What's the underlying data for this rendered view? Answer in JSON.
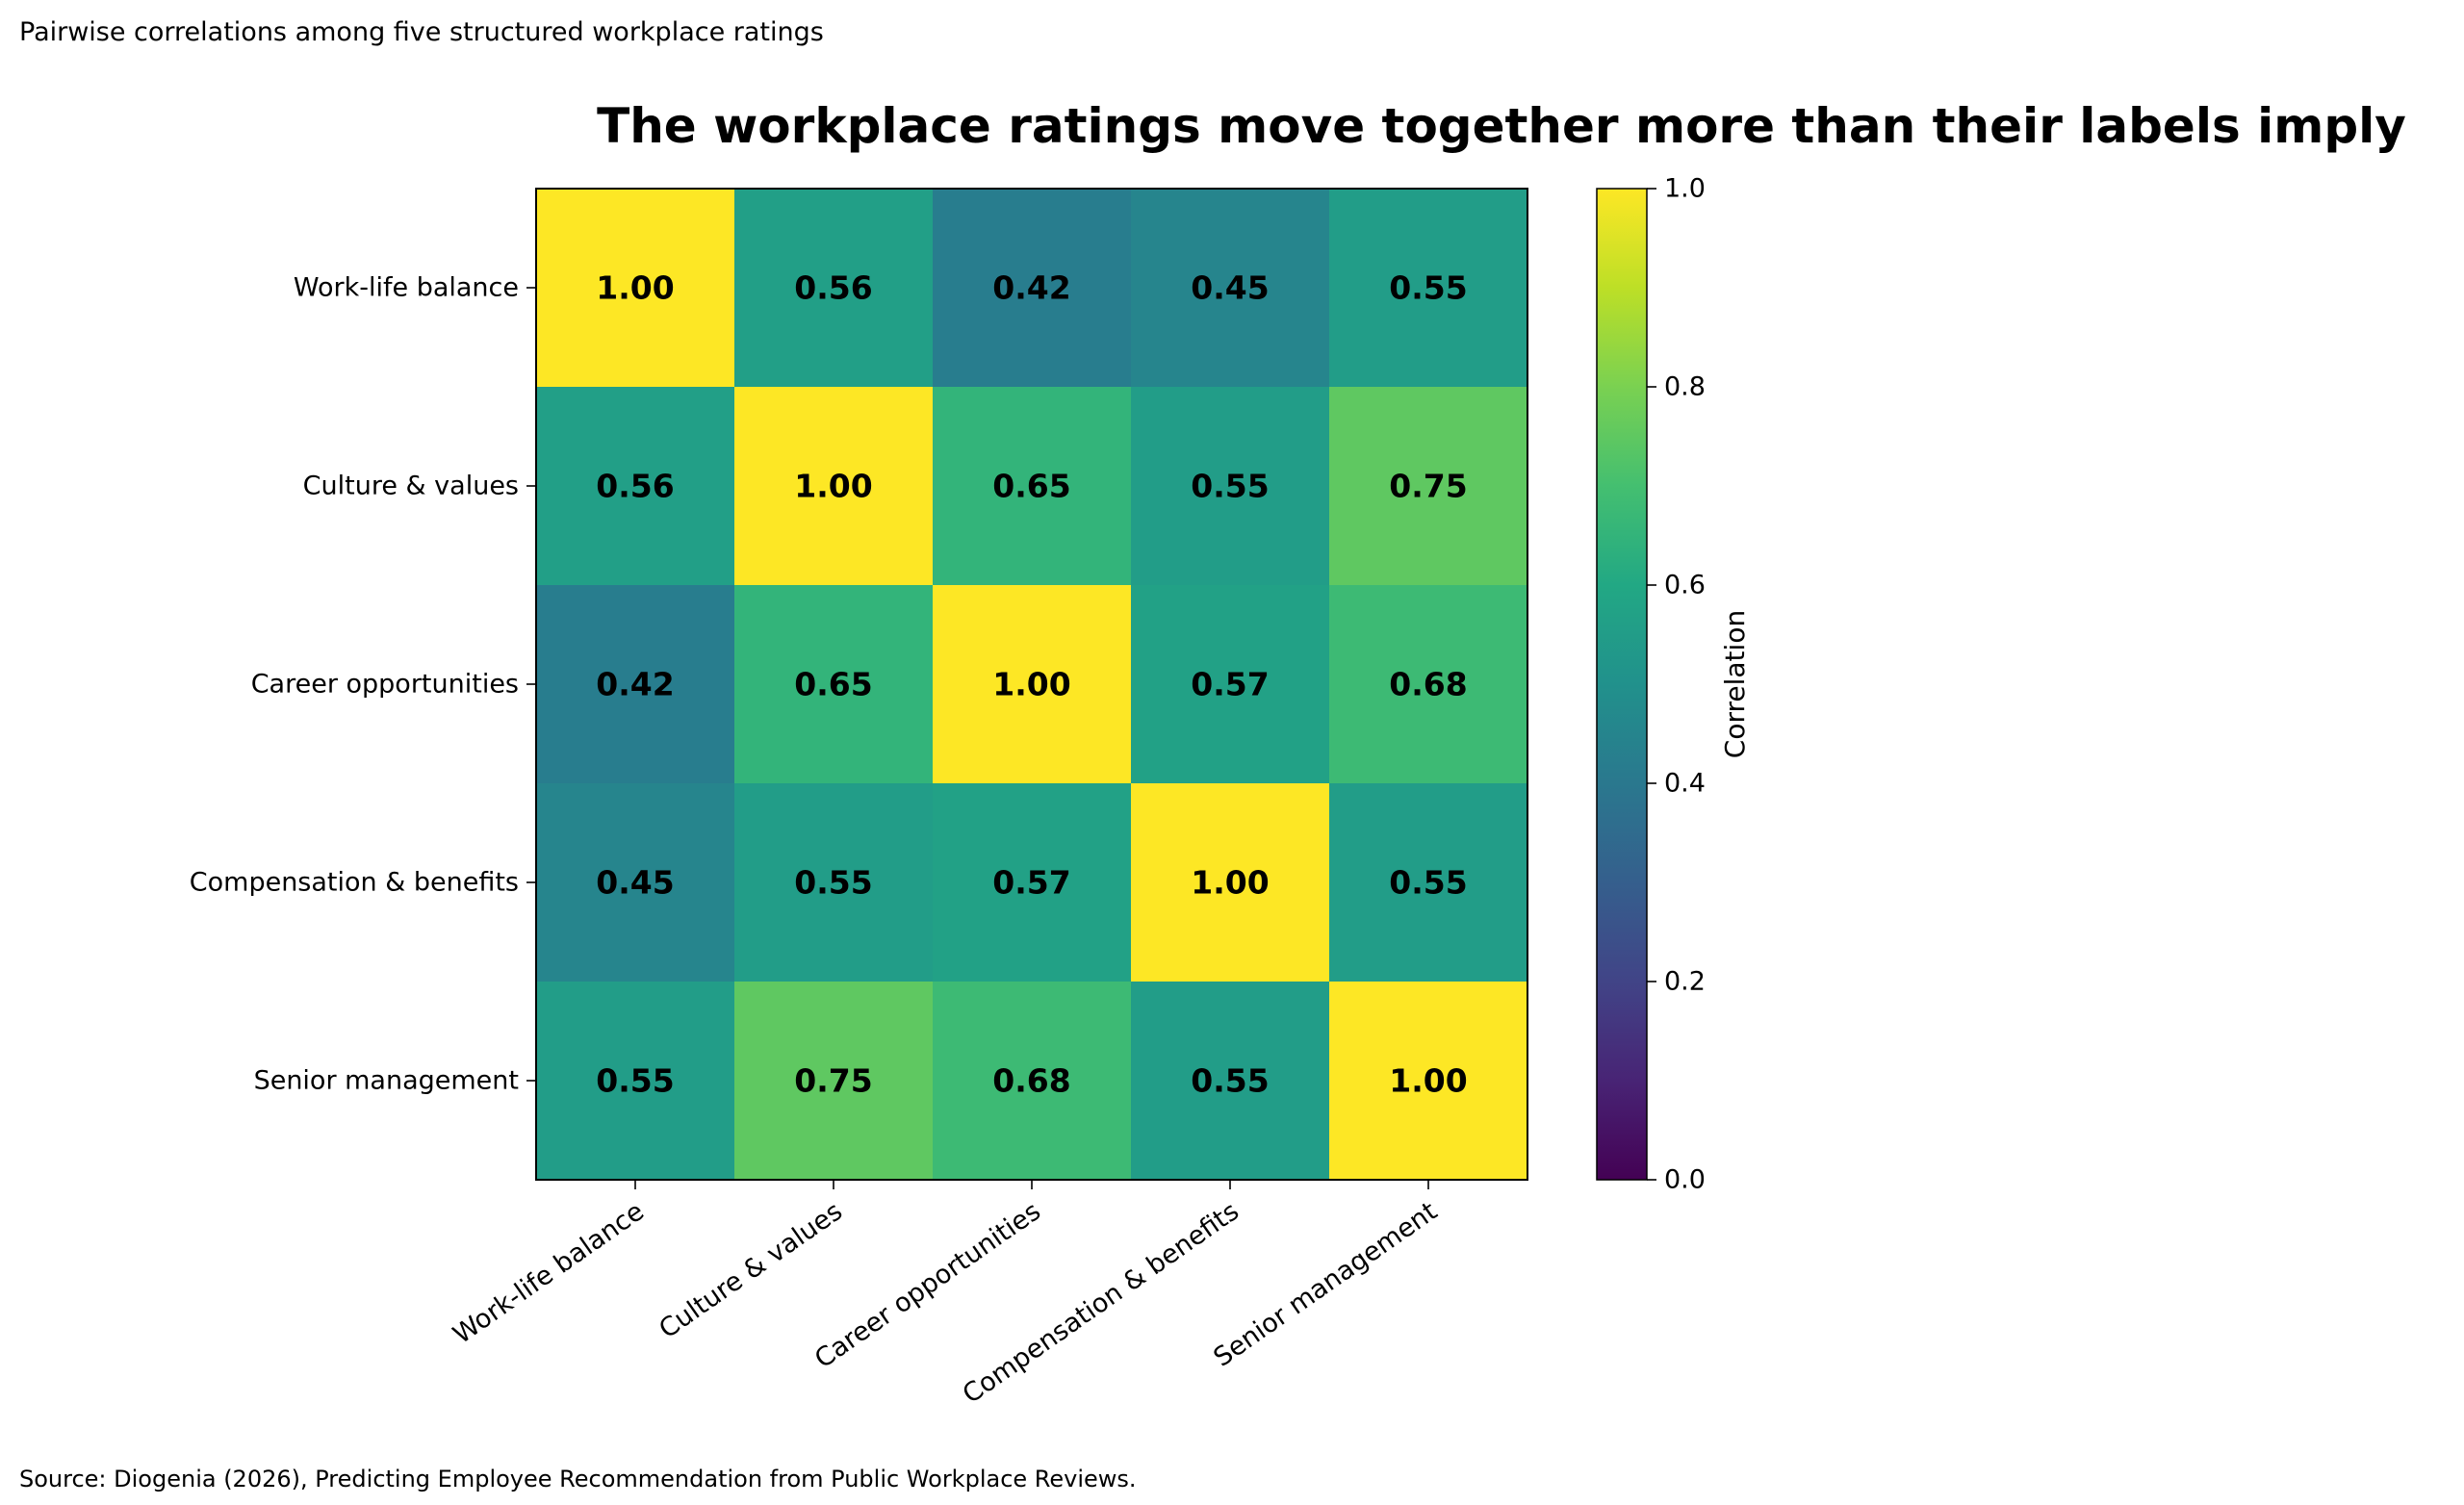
{
  "header": {
    "subtitle": "Pairwise correlations among five structured workplace ratings"
  },
  "footer": {
    "source": "Source: Diogenia (2026), Predicting Employee Recommendation from Public Workplace Reviews."
  },
  "chart_data": {
    "type": "heatmap",
    "title": "The workplace ratings move together more than their labels imply",
    "row_labels": [
      "Work-life balance",
      "Culture & values",
      "Career opportunities",
      "Compensation & benefits",
      "Senior management"
    ],
    "col_labels": [
      "Work-life balance",
      "Culture & values",
      "Career opportunities",
      "Compensation & benefits",
      "Senior management"
    ],
    "values": [
      [
        1.0,
        0.56,
        0.42,
        0.45,
        0.55
      ],
      [
        0.56,
        1.0,
        0.65,
        0.55,
        0.75
      ],
      [
        0.42,
        0.65,
        1.0,
        0.57,
        0.68
      ],
      [
        0.45,
        0.55,
        0.57,
        1.0,
        0.55
      ],
      [
        0.55,
        0.75,
        0.68,
        0.55,
        1.0
      ]
    ],
    "value_format": "0.00",
    "colormap": "viridis",
    "colorbar": {
      "label": "Correlation",
      "range": [
        0.0,
        1.0
      ],
      "ticks": [
        0.0,
        0.2,
        0.4,
        0.6,
        0.8,
        1.0
      ],
      "tick_labels": [
        "0.0",
        "0.2",
        "0.4",
        "0.6",
        "0.8",
        "1.0"
      ]
    }
  }
}
